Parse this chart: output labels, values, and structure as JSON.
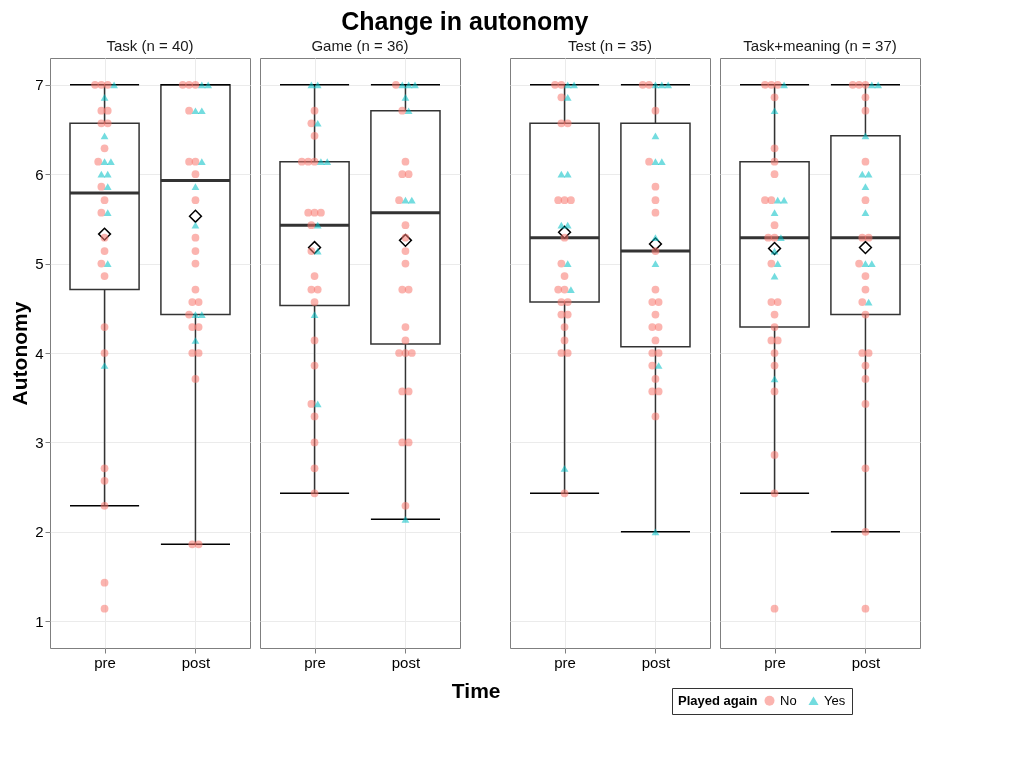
{
  "chart_data": [
    {
      "type": "box",
      "title": "Task (n = 40)",
      "annotations": [
        "Change in autonomy"
      ],
      "ylabel": "Autonomy",
      "legend": "bottom right",
      "legend_title": "Played again",
      "categories": [
        "pre",
        "post"
      ],
      "boxes": [
        {
          "low": 2.29,
          "q1": 4.71,
          "median": 5.79,
          "q3": 6.57,
          "high": 7,
          "mean": 5.33
        },
        {
          "low": 1.86,
          "q1": 4.43,
          "median": 5.93,
          "q3": 7,
          "high": 7,
          "mean": 5.53
        }
      ],
      "series": [
        {
          "type": "scatter",
          "name": "No",
          "color": "#f8766d",
          "marker": "circle",
          "x": [
            "pre",
            "pre",
            "pre",
            "pre",
            "pre",
            "pre",
            "pre",
            "pre",
            "pre",
            "pre",
            "pre",
            "pre",
            "pre",
            "pre",
            "pre",
            "pre",
            "pre",
            "pre",
            "pre",
            "pre",
            "pre",
            "pre",
            "pre",
            "post",
            "post",
            "post",
            "post",
            "post",
            "post",
            "post",
            "post",
            "post",
            "post",
            "post",
            "post",
            "post",
            "post",
            "post",
            "post",
            "post",
            "post",
            "post",
            "post",
            "post",
            "post"
          ],
          "values": [
            7,
            7,
            7,
            6.71,
            6.71,
            6.57,
            6.57,
            6.29,
            6.14,
            5.86,
            5.71,
            5.57,
            5.29,
            5.14,
            5,
            4.86,
            4.29,
            4,
            2.71,
            2.57,
            2.29,
            1.43,
            1.14,
            7,
            7,
            7,
            6.71,
            6.14,
            6.14,
            6,
            5.71,
            5.29,
            5.14,
            5,
            4.71,
            4.57,
            4.57,
            4.43,
            4.29,
            4.29,
            4,
            4,
            3.71,
            1.86,
            1.86
          ]
        },
        {
          "type": "scatter",
          "name": "Yes",
          "color": "#00bfc4",
          "marker": "triangle",
          "x": [
            "pre",
            "pre",
            "pre",
            "pre",
            "pre",
            "pre",
            "pre",
            "pre",
            "pre",
            "pre",
            "pre",
            "post",
            "post",
            "post",
            "post",
            "post",
            "post",
            "post",
            "post",
            "post",
            "post"
          ],
          "values": [
            7,
            6.86,
            6.43,
            6.14,
            6.14,
            6,
            6,
            5.86,
            5.57,
            5,
            3.86,
            7,
            7,
            6.71,
            6.71,
            6.14,
            5.86,
            5.43,
            4.43,
            4.43,
            4.14
          ]
        }
      ],
      "ylim": [
        0.7,
        7.3
      ],
      "yticks": [
        1,
        2,
        3,
        4,
        5,
        6,
        7
      ],
      "grid": true
    },
    {
      "type": "box",
      "title": "Game (n = 36)",
      "xlabel": "Time",
      "categories": [
        "pre",
        "post"
      ],
      "boxes": [
        {
          "low": 2.43,
          "q1": 4.53,
          "median": 5.43,
          "q3": 6.14,
          "high": 7,
          "mean": 5.18
        },
        {
          "low": 2.14,
          "q1": 4.1,
          "median": 5.57,
          "q3": 6.71,
          "high": 7,
          "mean": 5.26
        }
      ],
      "series": [
        {
          "type": "scatter",
          "name": "No",
          "color": "#f8766d",
          "marker": "circle",
          "x": [
            "pre",
            "pre",
            "pre",
            "pre",
            "pre",
            "pre",
            "pre",
            "pre",
            "pre",
            "pre",
            "pre",
            "pre",
            "pre",
            "pre",
            "pre",
            "pre",
            "pre",
            "pre",
            "pre",
            "pre",
            "pre",
            "pre",
            "post",
            "post",
            "post",
            "post",
            "post",
            "post",
            "post",
            "post",
            "post",
            "post",
            "post",
            "post",
            "post",
            "post",
            "post",
            "post",
            "post",
            "post",
            "post",
            "post",
            "post",
            "post"
          ],
          "values": [
            6.71,
            6.57,
            6.43,
            6.14,
            6.14,
            6.14,
            5.57,
            5.57,
            5.57,
            5.43,
            5.14,
            4.86,
            4.71,
            4.71,
            4.57,
            4.14,
            3.86,
            3.43,
            3.29,
            3,
            2.71,
            2.43,
            7,
            6.71,
            6.14,
            6,
            6,
            5.71,
            5.43,
            5.29,
            5.14,
            5,
            4.71,
            4.71,
            4.29,
            4.14,
            4,
            4,
            4,
            3.57,
            3.57,
            3,
            3,
            2.29
          ]
        },
        {
          "type": "scatter",
          "name": "Yes",
          "color": "#00bfc4",
          "marker": "triangle",
          "x": [
            "pre",
            "pre",
            "pre",
            "pre",
            "pre",
            "pre",
            "pre",
            "pre",
            "pre",
            "post",
            "post",
            "post",
            "post",
            "post",
            "post",
            "post",
            "post"
          ],
          "values": [
            7,
            7,
            6.57,
            6.14,
            6.14,
            5.43,
            5.14,
            4.43,
            3.43,
            7,
            7,
            7,
            6.86,
            6.71,
            5.71,
            5.71,
            2.14
          ]
        }
      ],
      "ylim": [
        0.7,
        7.3
      ],
      "yticks": [
        1,
        2,
        3,
        4,
        5,
        6,
        7
      ],
      "grid": true,
      "tick_labels": "x"
    },
    {
      "type": "box",
      "title": "Test (n = 35)",
      "categories": [
        "pre",
        "post"
      ],
      "boxes": [
        {
          "low": 2.43,
          "q1": 4.57,
          "median": 5.29,
          "q3": 6.57,
          "high": 7,
          "mean": 5.35
        },
        {
          "low": 2,
          "q1": 4.07,
          "median": 5.14,
          "q3": 6.57,
          "high": 7,
          "mean": 5.22
        }
      ],
      "series": [
        {
          "type": "scatter",
          "name": "No",
          "color": "#f8766d",
          "marker": "circle",
          "x": [
            "pre",
            "pre",
            "pre",
            "pre",
            "pre",
            "pre",
            "pre",
            "pre",
            "pre",
            "pre",
            "pre",
            "pre",
            "pre",
            "pre",
            "pre",
            "pre",
            "pre",
            "pre",
            "pre",
            "pre",
            "pre",
            "pre",
            "post",
            "post",
            "post",
            "post",
            "post",
            "post",
            "post",
            "post",
            "post",
            "post",
            "post",
            "post",
            "post",
            "post",
            "post",
            "post",
            "post",
            "post",
            "post",
            "post",
            "post",
            "post"
          ],
          "values": [
            7,
            7,
            6.86,
            6.57,
            6.57,
            5.71,
            5.71,
            5.71,
            5.29,
            5,
            4.86,
            4.71,
            4.71,
            4.57,
            4.57,
            4.43,
            4.43,
            4.29,
            4.14,
            4,
            4,
            2.43,
            7,
            7,
            6.71,
            6.14,
            5.86,
            5.71,
            5.57,
            5.14,
            4.71,
            4.57,
            4.57,
            4.43,
            4.29,
            4.29,
            4.14,
            4,
            4,
            3.86,
            3.71,
            3.57,
            3.57,
            3.29
          ]
        },
        {
          "type": "scatter",
          "name": "Yes",
          "color": "#00bfc4",
          "marker": "triangle",
          "x": [
            "pre",
            "pre",
            "pre",
            "pre",
            "pre",
            "pre",
            "pre",
            "pre",
            "pre",
            "pre",
            "post",
            "post",
            "post",
            "post",
            "post",
            "post",
            "post",
            "post",
            "post",
            "post"
          ],
          "values": [
            7,
            7,
            6.86,
            6,
            6,
            5.43,
            5.43,
            5,
            4.71,
            2.71,
            7,
            7,
            7,
            6.43,
            6.14,
            6.14,
            5.29,
            5,
            3.86,
            2
          ]
        }
      ],
      "ylim": [
        0.7,
        7.3
      ],
      "yticks": [
        1,
        2,
        3,
        4,
        5,
        6,
        7
      ],
      "grid": true,
      "tick_labels": "x"
    },
    {
      "type": "box",
      "title": "Task+meaning (n = 37)",
      "categories": [
        "pre",
        "post"
      ],
      "boxes": [
        {
          "low": 2.43,
          "q1": 4.29,
          "median": 5.29,
          "q3": 6.14,
          "high": 7,
          "mean": 5.17
        },
        {
          "low": 2,
          "q1": 4.43,
          "median": 5.29,
          "q3": 6.43,
          "high": 7,
          "mean": 5.18
        }
      ],
      "series": [
        {
          "type": "scatter",
          "name": "No",
          "color": "#f8766d",
          "marker": "circle",
          "x": [
            "pre",
            "pre",
            "pre",
            "pre",
            "pre",
            "pre",
            "pre",
            "pre",
            "pre",
            "pre",
            "pre",
            "pre",
            "pre",
            "pre",
            "pre",
            "pre",
            "pre",
            "pre",
            "pre",
            "pre",
            "pre",
            "pre",
            "pre",
            "pre",
            "pre",
            "post",
            "post",
            "post",
            "post",
            "post",
            "post",
            "post",
            "post",
            "post",
            "post",
            "post",
            "post",
            "post",
            "post",
            "post",
            "post",
            "post",
            "post",
            "post",
            "post",
            "post",
            "post"
          ],
          "values": [
            7,
            7,
            7,
            6.86,
            6.29,
            6.14,
            6,
            5.71,
            5.71,
            5.43,
            5.29,
            5.29,
            5,
            4.57,
            4.57,
            4.43,
            4.29,
            4.14,
            4.14,
            4,
            3.86,
            3.57,
            2.86,
            2.43,
            1.14,
            7,
            7,
            7,
            6.86,
            6.71,
            6.14,
            5.71,
            5.29,
            5.29,
            5,
            4.86,
            4.71,
            4.57,
            4.43,
            4,
            4,
            3.86,
            3.71,
            3.43,
            2.71,
            2,
            1.14
          ]
        },
        {
          "type": "scatter",
          "name": "Yes",
          "color": "#00bfc4",
          "marker": "triangle",
          "x": [
            "pre",
            "pre",
            "pre",
            "pre",
            "pre",
            "pre",
            "pre",
            "pre",
            "pre",
            "pre",
            "post",
            "post",
            "post",
            "post",
            "post",
            "post",
            "post",
            "post",
            "post",
            "post"
          ],
          "values": [
            7,
            6.71,
            5.71,
            5.71,
            5.57,
            5.29,
            5.14,
            5,
            4.86,
            3.71,
            7,
            7,
            6.43,
            6,
            6,
            5.86,
            5.57,
            5,
            5,
            4.57
          ]
        }
      ],
      "ylim": [
        0.7,
        7.3
      ],
      "yticks": [
        1,
        2,
        3,
        4,
        5,
        6,
        7
      ],
      "grid": true,
      "tick_labels": "x"
    }
  ]
}
